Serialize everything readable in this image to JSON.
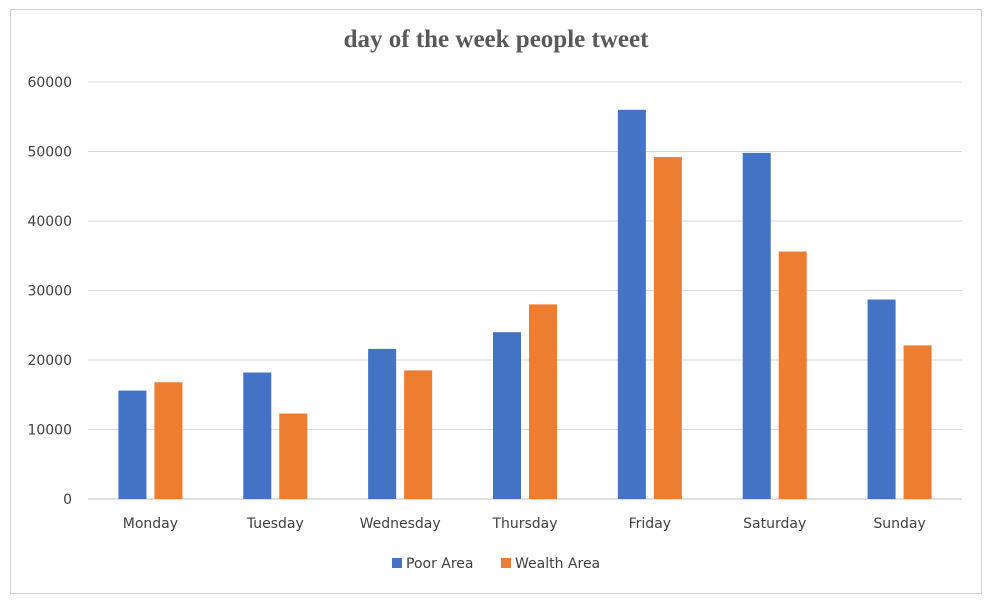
{
  "chart_data": {
    "type": "bar",
    "title": "day of the week people tweet",
    "xlabel": "",
    "ylabel": "",
    "categories": [
      "Monday",
      "Tuesday",
      "Wednesday",
      "Thursday",
      "Friday",
      "Saturday",
      "Sunday"
    ],
    "series": [
      {
        "name": "Poor Area",
        "color": "#4472C4",
        "values": [
          15600,
          18200,
          21600,
          24000,
          56000,
          49800,
          28700
        ]
      },
      {
        "name": "Wealth Area",
        "color": "#ED7D31",
        "values": [
          16800,
          12300,
          18500,
          28000,
          49200,
          35600,
          22100
        ]
      }
    ],
    "ylim": [
      0,
      60000
    ],
    "yticks": [
      "0",
      "10000",
      "20000",
      "30000",
      "40000",
      "50000",
      "60000"
    ],
    "grid": true,
    "legend_position": "bottom"
  }
}
